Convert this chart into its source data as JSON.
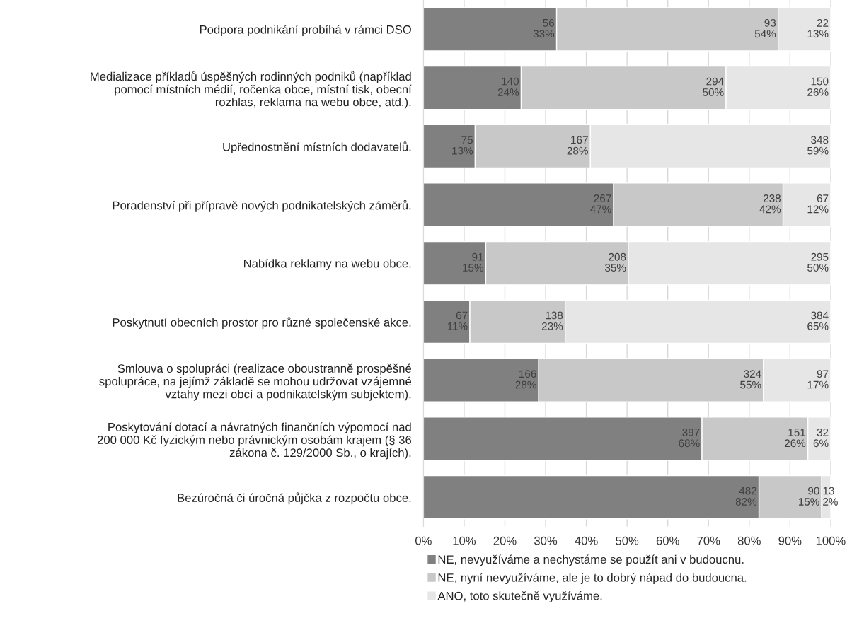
{
  "chart_data": {
    "type": "bar",
    "orientation": "horizontal",
    "stacked": true,
    "categories": [
      "Podpora podnikání probíhá v rámci DSO",
      "Medializace příkladů úspěšných rodinných podniků (například\npomocí místních médií, ročenka obce, místní tisk, obecní\nrozhlas, reklama na webu obce, atd.).",
      "Upřednostnění místních dodavatelů.",
      "Poradenství při přípravě nových podnikatelských záměrů.",
      "Nabídka reklamy na webu obce.",
      "Poskytnutí obecních prostor pro různé společenské akce.",
      "Smlouva o spolupráci (realizace oboustranně prospěšné\nspolupráce, na jejímž základě se mohou udržovat vzájemné\nvztahy mezi obcí a podnikatelským subjektem).",
      "Poskytování dotací a návratných finančních výpomocí nad\n200 000 Kč fyzickým nebo právnickým osobám krajem (§ 36\nzákona č. 129/2000 Sb., o krajích).",
      "Bezúročná či úročná půjčka z rozpočtu obce."
    ],
    "series": [
      {
        "name": "NE, nevyužíváme a nechystáme se použít ani v budoucnu.",
        "color": "#808080",
        "values": [
          32.7,
          24.0,
          12.7,
          46.7,
          15.3,
          11.4,
          28.3,
          68.4,
          82.4
        ],
        "value_labels": [
          "56\n33%",
          "140\n24%",
          "75\n13%",
          "267\n47%",
          "91\n15%",
          "67\n11%",
          "166\n28%",
          "397\n68%",
          "482\n82%"
        ]
      },
      {
        "name": "NE, nyní nevyužíváme, ale je to dobrý nápad do budoucna.",
        "color": "#c8c8c8",
        "values": [
          54.4,
          50.3,
          28.3,
          41.6,
          35.0,
          23.4,
          55.2,
          26.0,
          15.4
        ],
        "value_labels": [
          "93\n54%",
          "294\n50%",
          "167\n28%",
          "238\n42%",
          "208\n35%",
          "138\n23%",
          "324\n55%",
          "151\n26%",
          "90\n15%"
        ]
      },
      {
        "name": "ANO, toto skutečně využíváme.",
        "color": "#e6e6e6",
        "values": [
          12.9,
          25.7,
          59.0,
          11.7,
          49.7,
          65.2,
          16.5,
          5.6,
          2.2
        ],
        "value_labels": [
          "22\n13%",
          "150\n26%",
          "348\n59%",
          "67\n12%",
          "295\n50%",
          "384\n65%",
          "97\n17%",
          "32\n6%",
          "13\n2%"
        ]
      }
    ],
    "xlim": [
      0,
      100
    ],
    "xticks": [
      {
        "value": 0,
        "label": "0%"
      },
      {
        "value": 10,
        "label": "10%"
      },
      {
        "value": 20,
        "label": "20%"
      },
      {
        "value": 30,
        "label": "30%"
      },
      {
        "value": 40,
        "label": "40%"
      },
      {
        "value": 50,
        "label": "50%"
      },
      {
        "value": 60,
        "label": "60%"
      },
      {
        "value": 70,
        "label": "70%"
      },
      {
        "value": 80,
        "label": "80%"
      },
      {
        "value": 90,
        "label": "90%"
      },
      {
        "value": 100,
        "label": "100%"
      }
    ],
    "grid": "x",
    "legend": "bottom"
  }
}
